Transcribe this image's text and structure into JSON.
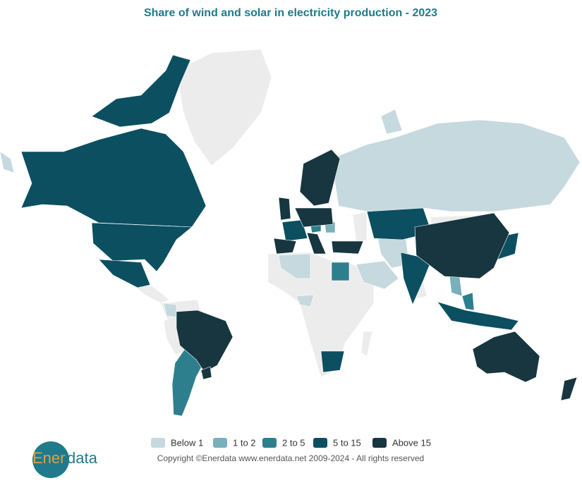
{
  "header": {
    "title": "Share of wind and solar in electricity production - 2023"
  },
  "legend": {
    "items": [
      {
        "label": "Below 1",
        "color": "#c5d9df"
      },
      {
        "label": "1 to 2",
        "color": "#7aafbc"
      },
      {
        "label": "2 to 5",
        "color": "#2e7f8e"
      },
      {
        "label": "5 to 15",
        "color": "#0b4f61"
      },
      {
        "label": "Above 15",
        "color": "#17363f"
      }
    ],
    "no_data_color": "#ececec"
  },
  "footer": {
    "copyright": "Copyright ©Enerdata www.enerdata.net 2009-2024 - All rights reserved",
    "logo": {
      "part1": "Ener",
      "part2": "data"
    }
  }
}
